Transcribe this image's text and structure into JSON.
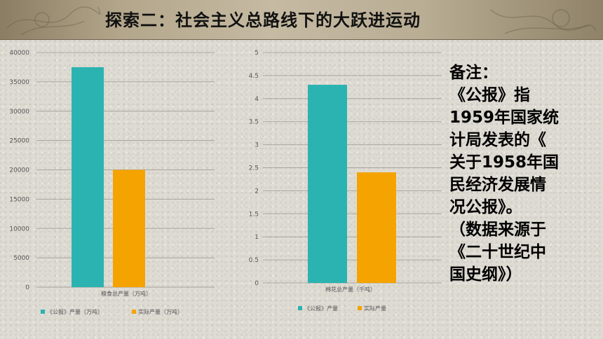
{
  "slide": {
    "title": "探索二：社会主义总路线下的大跃进运动"
  },
  "note": {
    "lines": [
      "备注：",
      "《公报》指",
      "1959年国家统",
      "计局发表的《",
      "关于1958年国",
      "民经济发展情",
      "况公报》。",
      "（数据来源于",
      "《二十世纪中",
      "国史纲》）"
    ]
  },
  "colors": {
    "series_report": "#2ab3b1",
    "series_actual": "#f5a300",
    "grid": "#a8a49c",
    "tick": "#555555"
  },
  "chart_data": [
    {
      "type": "bar",
      "categories": [
        "粮食总产量（万吨）"
      ],
      "series": [
        {
          "name": "《公报》产量（万吨）",
          "values": [
            37500
          ]
        },
        {
          "name": "实际产量（万吨）",
          "values": [
            20000
          ]
        }
      ],
      "ylim": [
        0,
        40000
      ],
      "yticks": [
        "0",
        "5000",
        "10000",
        "15000",
        "20000",
        "25000",
        "30000",
        "35000",
        "40000"
      ],
      "grid": true,
      "legend": "bottom"
    },
    {
      "type": "bar",
      "categories": [
        "棉花总产量（千吨）"
      ],
      "series": [
        {
          "name": "《公报》产量",
          "values": [
            4.3
          ]
        },
        {
          "name": "实际产量",
          "values": [
            2.4
          ]
        }
      ],
      "ylim": [
        0,
        5
      ],
      "yticks": [
        "0",
        "0.5",
        "1",
        "1.5",
        "2",
        "2.5",
        "3",
        "3.5",
        "4",
        "4.5",
        "5"
      ],
      "grid": true,
      "legend": "bottom"
    }
  ]
}
